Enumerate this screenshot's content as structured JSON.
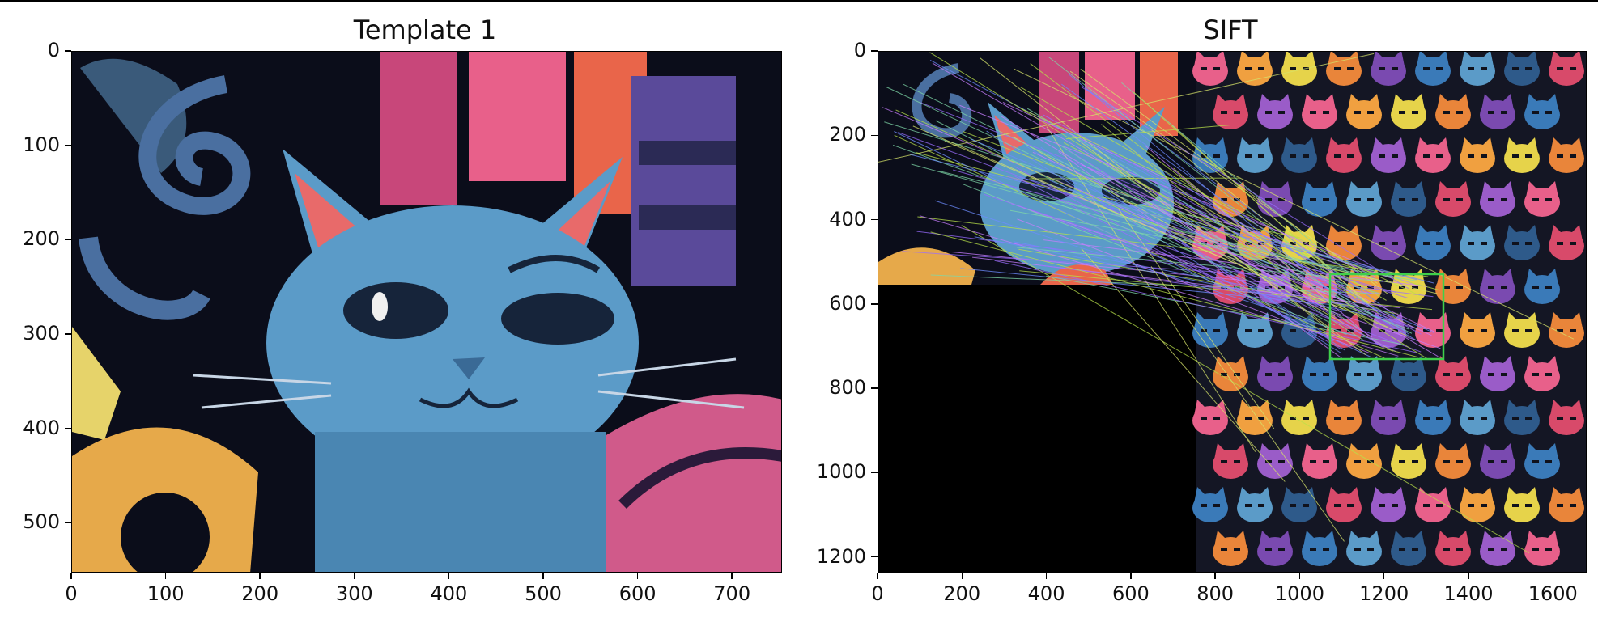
{
  "panels": [
    {
      "title": "Template 1",
      "x_ticks": [
        "0",
        "100",
        "200",
        "300",
        "400",
        "500",
        "600",
        "700"
      ],
      "y_ticks": [
        "0",
        "100",
        "200",
        "300",
        "400",
        "500"
      ],
      "x_range": [
        0,
        753
      ],
      "y_range": [
        0,
        553
      ],
      "content": "cat-template-image"
    },
    {
      "title": "SIFT",
      "x_ticks": [
        "0",
        "200",
        "400",
        "600",
        "800",
        "1000",
        "1200",
        "1400",
        "1600"
      ],
      "y_ticks": [
        "0",
        "200",
        "400",
        "600",
        "800",
        "1000",
        "1200"
      ],
      "x_range": [
        0,
        1680
      ],
      "y_range": [
        0,
        1237
      ],
      "content": "sift-feature-matches",
      "match_box_color": "#3fd04a",
      "match_line_colors": [
        "#b8e04a",
        "#9a6cff",
        "#7fd8a8",
        "#d6e36a",
        "#6e8cff",
        "#c77dff"
      ]
    }
  ],
  "colors": {
    "background": "#ffffff",
    "cat_blue": "#5b9bc8",
    "ear_pink": "#e86a6a",
    "dark_bg": "#0b0d1a"
  }
}
